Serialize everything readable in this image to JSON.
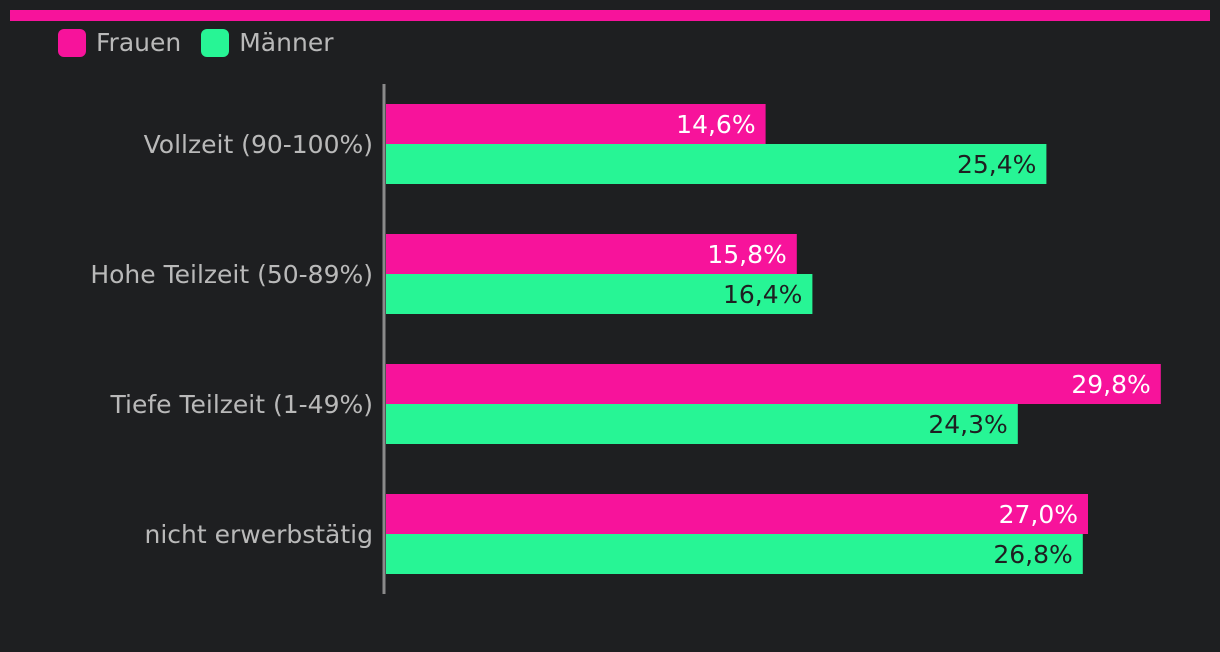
{
  "colors": {
    "accent": "#f7139b",
    "frauen": "#f7139b",
    "maenner": "#27f595",
    "background": "#1e1f21",
    "text": "#b9b9b9",
    "label_on_frauen": "#ffffff",
    "label_on_maenner": "#1e1f21"
  },
  "chart_data": {
    "type": "bar",
    "orientation": "horizontal",
    "categories": [
      "Vollzeit (90-100%)",
      "Hohe Teilzeit (50-89%)",
      "Tiefe Teilzeit (1-49%)",
      "nicht erwerbstätig"
    ],
    "series": [
      {
        "name": "Frauen",
        "values": [
          14.6,
          15.8,
          29.8,
          27.0
        ],
        "labels": [
          "14,6%",
          "15,8%",
          "29,8%",
          "27,0%"
        ]
      },
      {
        "name": "Männer",
        "values": [
          25.4,
          16.4,
          24.3,
          26.8
        ],
        "labels": [
          "25,4%",
          "16,4%",
          "24,3%",
          "26,8%"
        ]
      }
    ],
    "xlim": [
      0,
      30
    ],
    "grid": false,
    "legend_position": "top-left"
  }
}
